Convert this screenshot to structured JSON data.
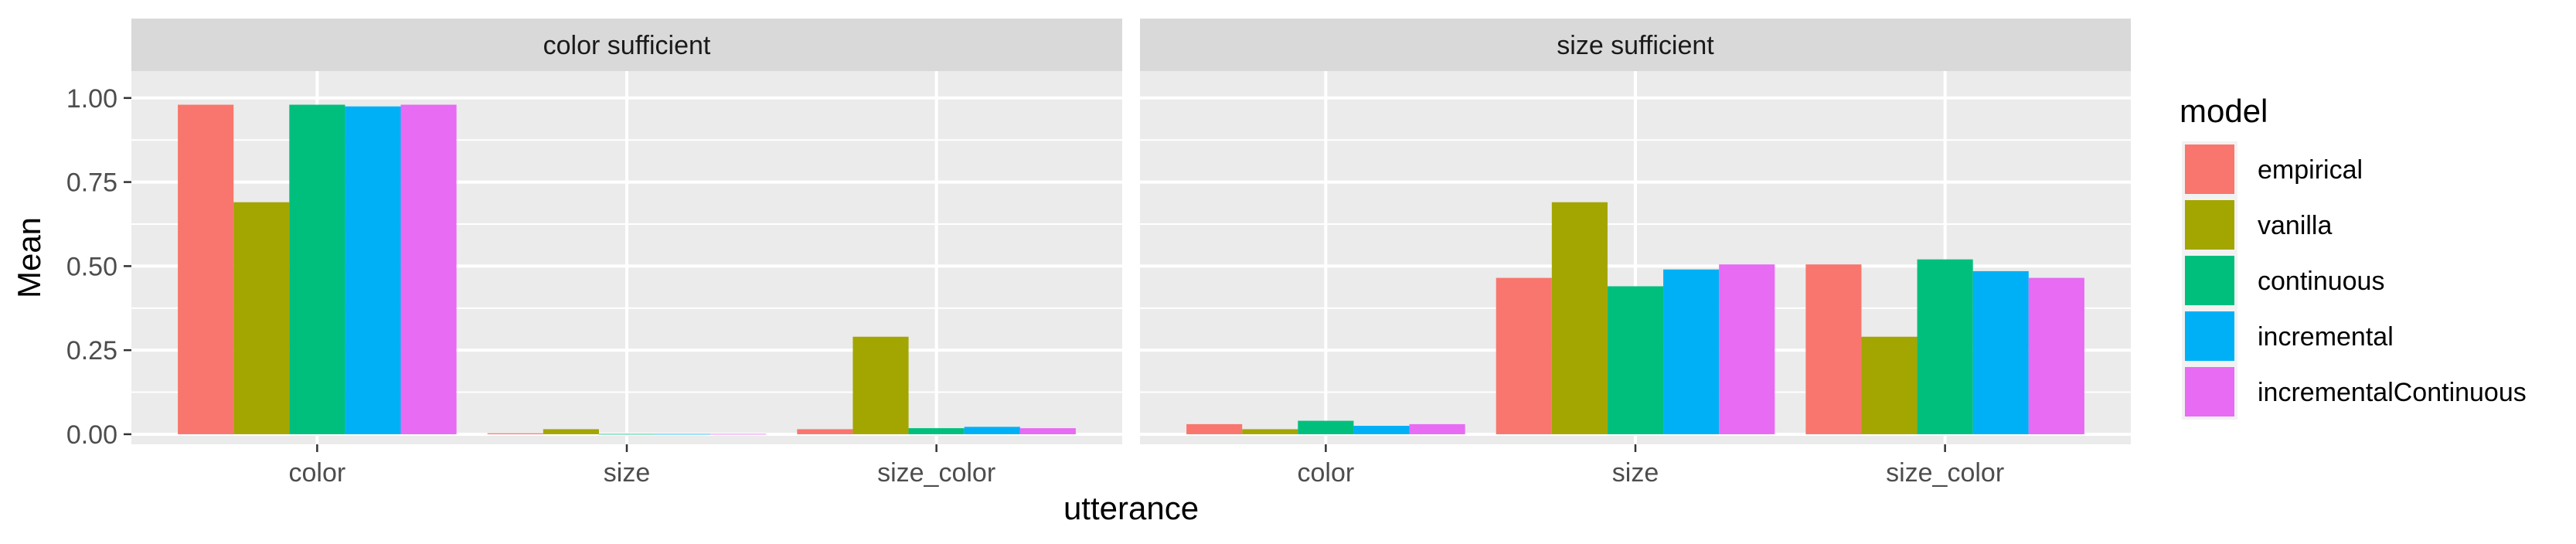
{
  "chart_data": {
    "type": "bar",
    "title": "",
    "xlabel": "utterance",
    "ylabel": "Mean",
    "ylim": [
      -0.03,
      1.08
    ],
    "y_ticks": [
      0.0,
      0.25,
      0.5,
      0.75,
      1.0
    ],
    "y_tick_labels": [
      "0.00",
      "0.25",
      "0.50",
      "0.75",
      "1.00"
    ],
    "categories": [
      "color",
      "size",
      "size_color"
    ],
    "grid": true,
    "legend_position": "right",
    "legend_title": "model",
    "colors": {
      "empirical": "#F8766D",
      "vanilla": "#A3A500",
      "continuous": "#00BF7D",
      "incremental": "#00B0F6",
      "incrementalContinuous": "#E76BF3"
    },
    "facets": [
      {
        "label": "color sufficient",
        "series": [
          {
            "name": "empirical",
            "values": [
              0.98,
              0.003,
              0.015
            ]
          },
          {
            "name": "vanilla",
            "values": [
              0.69,
              0.015,
              0.29
            ]
          },
          {
            "name": "continuous",
            "values": [
              0.98,
              0.001,
              0.018
            ]
          },
          {
            "name": "incremental",
            "values": [
              0.975,
              0.001,
              0.022
            ]
          },
          {
            "name": "incrementalContinuous",
            "values": [
              0.98,
              0.001,
              0.018
            ]
          }
        ]
      },
      {
        "label": "size sufficient",
        "series": [
          {
            "name": "empirical",
            "values": [
              0.03,
              0.465,
              0.505
            ]
          },
          {
            "name": "vanilla",
            "values": [
              0.015,
              0.69,
              0.29
            ]
          },
          {
            "name": "continuous",
            "values": [
              0.04,
              0.44,
              0.52
            ]
          },
          {
            "name": "incremental",
            "values": [
              0.025,
              0.49,
              0.485
            ]
          },
          {
            "name": "incrementalContinuous",
            "values": [
              0.03,
              0.505,
              0.465
            ]
          }
        ]
      }
    ]
  }
}
